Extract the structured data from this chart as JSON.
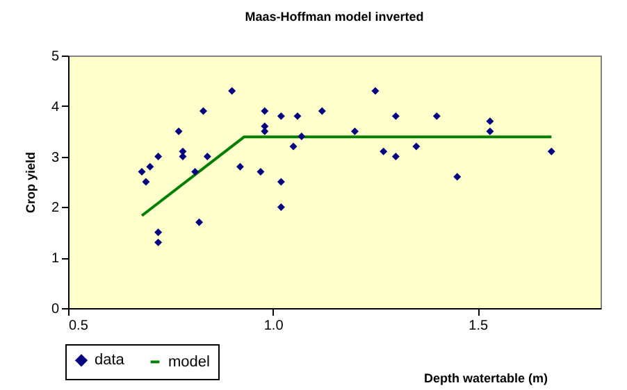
{
  "chart_data": {
    "type": "scatter",
    "title": "Maas-Hoffman model inverted",
    "xlabel": "Depth watertable (m)",
    "ylabel": "Crop yield",
    "xlim": [
      0.5,
      1.8
    ],
    "xticks": [
      {
        "value": 0.5,
        "label": "0.5"
      },
      {
        "value": 1.0,
        "label": "1.0"
      },
      {
        "value": 1.5,
        "label": "1.5"
      }
    ],
    "ylim": [
      0,
      5
    ],
    "yticks": [
      0,
      1,
      2,
      3,
      4,
      5
    ],
    "grid": false,
    "legend": "bottom left",
    "series": [
      {
        "name": "data",
        "marker": "diamond",
        "color": "#000080",
        "x": [
          0.68,
          0.69,
          0.7,
          0.72,
          0.72,
          0.72,
          0.77,
          0.78,
          0.78,
          0.81,
          0.82,
          0.83,
          0.84,
          0.9,
          0.92,
          0.97,
          0.98,
          0.98,
          0.98,
          1.02,
          1.02,
          1.02,
          1.05,
          1.06,
          1.07,
          1.12,
          1.2,
          1.25,
          1.27,
          1.3,
          1.3,
          1.35,
          1.4,
          1.45,
          1.53,
          1.53,
          1.68
        ],
        "values": [
          2.7,
          2.5,
          2.8,
          3.0,
          1.5,
          1.3,
          3.5,
          3.1,
          3.0,
          2.7,
          1.7,
          3.9,
          3.0,
          4.3,
          2.8,
          2.7,
          3.9,
          3.6,
          3.5,
          3.8,
          2.5,
          2.0,
          3.2,
          3.8,
          3.4,
          3.9,
          3.5,
          4.3,
          3.1,
          3.8,
          3.0,
          3.2,
          3.8,
          2.6,
          3.7,
          3.5,
          3.1
        ]
      },
      {
        "name": "model",
        "type": "line",
        "color": "#008000",
        "line_style": "solid",
        "x": [
          0.68,
          0.93,
          1.68
        ],
        "values": [
          1.83,
          3.39,
          3.39
        ]
      }
    ]
  }
}
